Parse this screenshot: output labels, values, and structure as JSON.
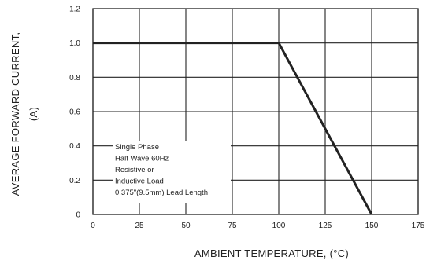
{
  "chart_data": {
    "type": "line",
    "xlabel": "AMBIENT TEMPERATURE, (°C)",
    "ylabel_line1": "AVERAGE FORWARD CURRENT,",
    "ylabel_line2": "(A)",
    "x_ticks": [
      0,
      25,
      50,
      75,
      100,
      125,
      150,
      175
    ],
    "x_tick_labels": [
      "0",
      "25",
      "50",
      "75",
      "100",
      "125",
      "150",
      "175"
    ],
    "y_ticks": [
      0,
      0.2,
      0.4,
      0.6,
      0.8,
      1.0,
      1.2
    ],
    "y_tick_labels": [
      "0",
      "0.2",
      "0.4",
      "0.6",
      "0.8",
      "1.0",
      "1.2"
    ],
    "xlim": [
      0,
      175
    ],
    "ylim": [
      0,
      1.2
    ],
    "grid": true,
    "series": [
      {
        "x": [
          0,
          100,
          150
        ],
        "y": [
          1.0,
          1.0,
          0.0
        ]
      }
    ],
    "annotation": [
      "Single Phase",
      "Half Wave 60Hz",
      "Resistive or",
      "Inductive Load",
      "0.375\"(9.5mm) Lead Length"
    ],
    "colors": {
      "line": "#222222",
      "grid": "#222222"
    }
  }
}
